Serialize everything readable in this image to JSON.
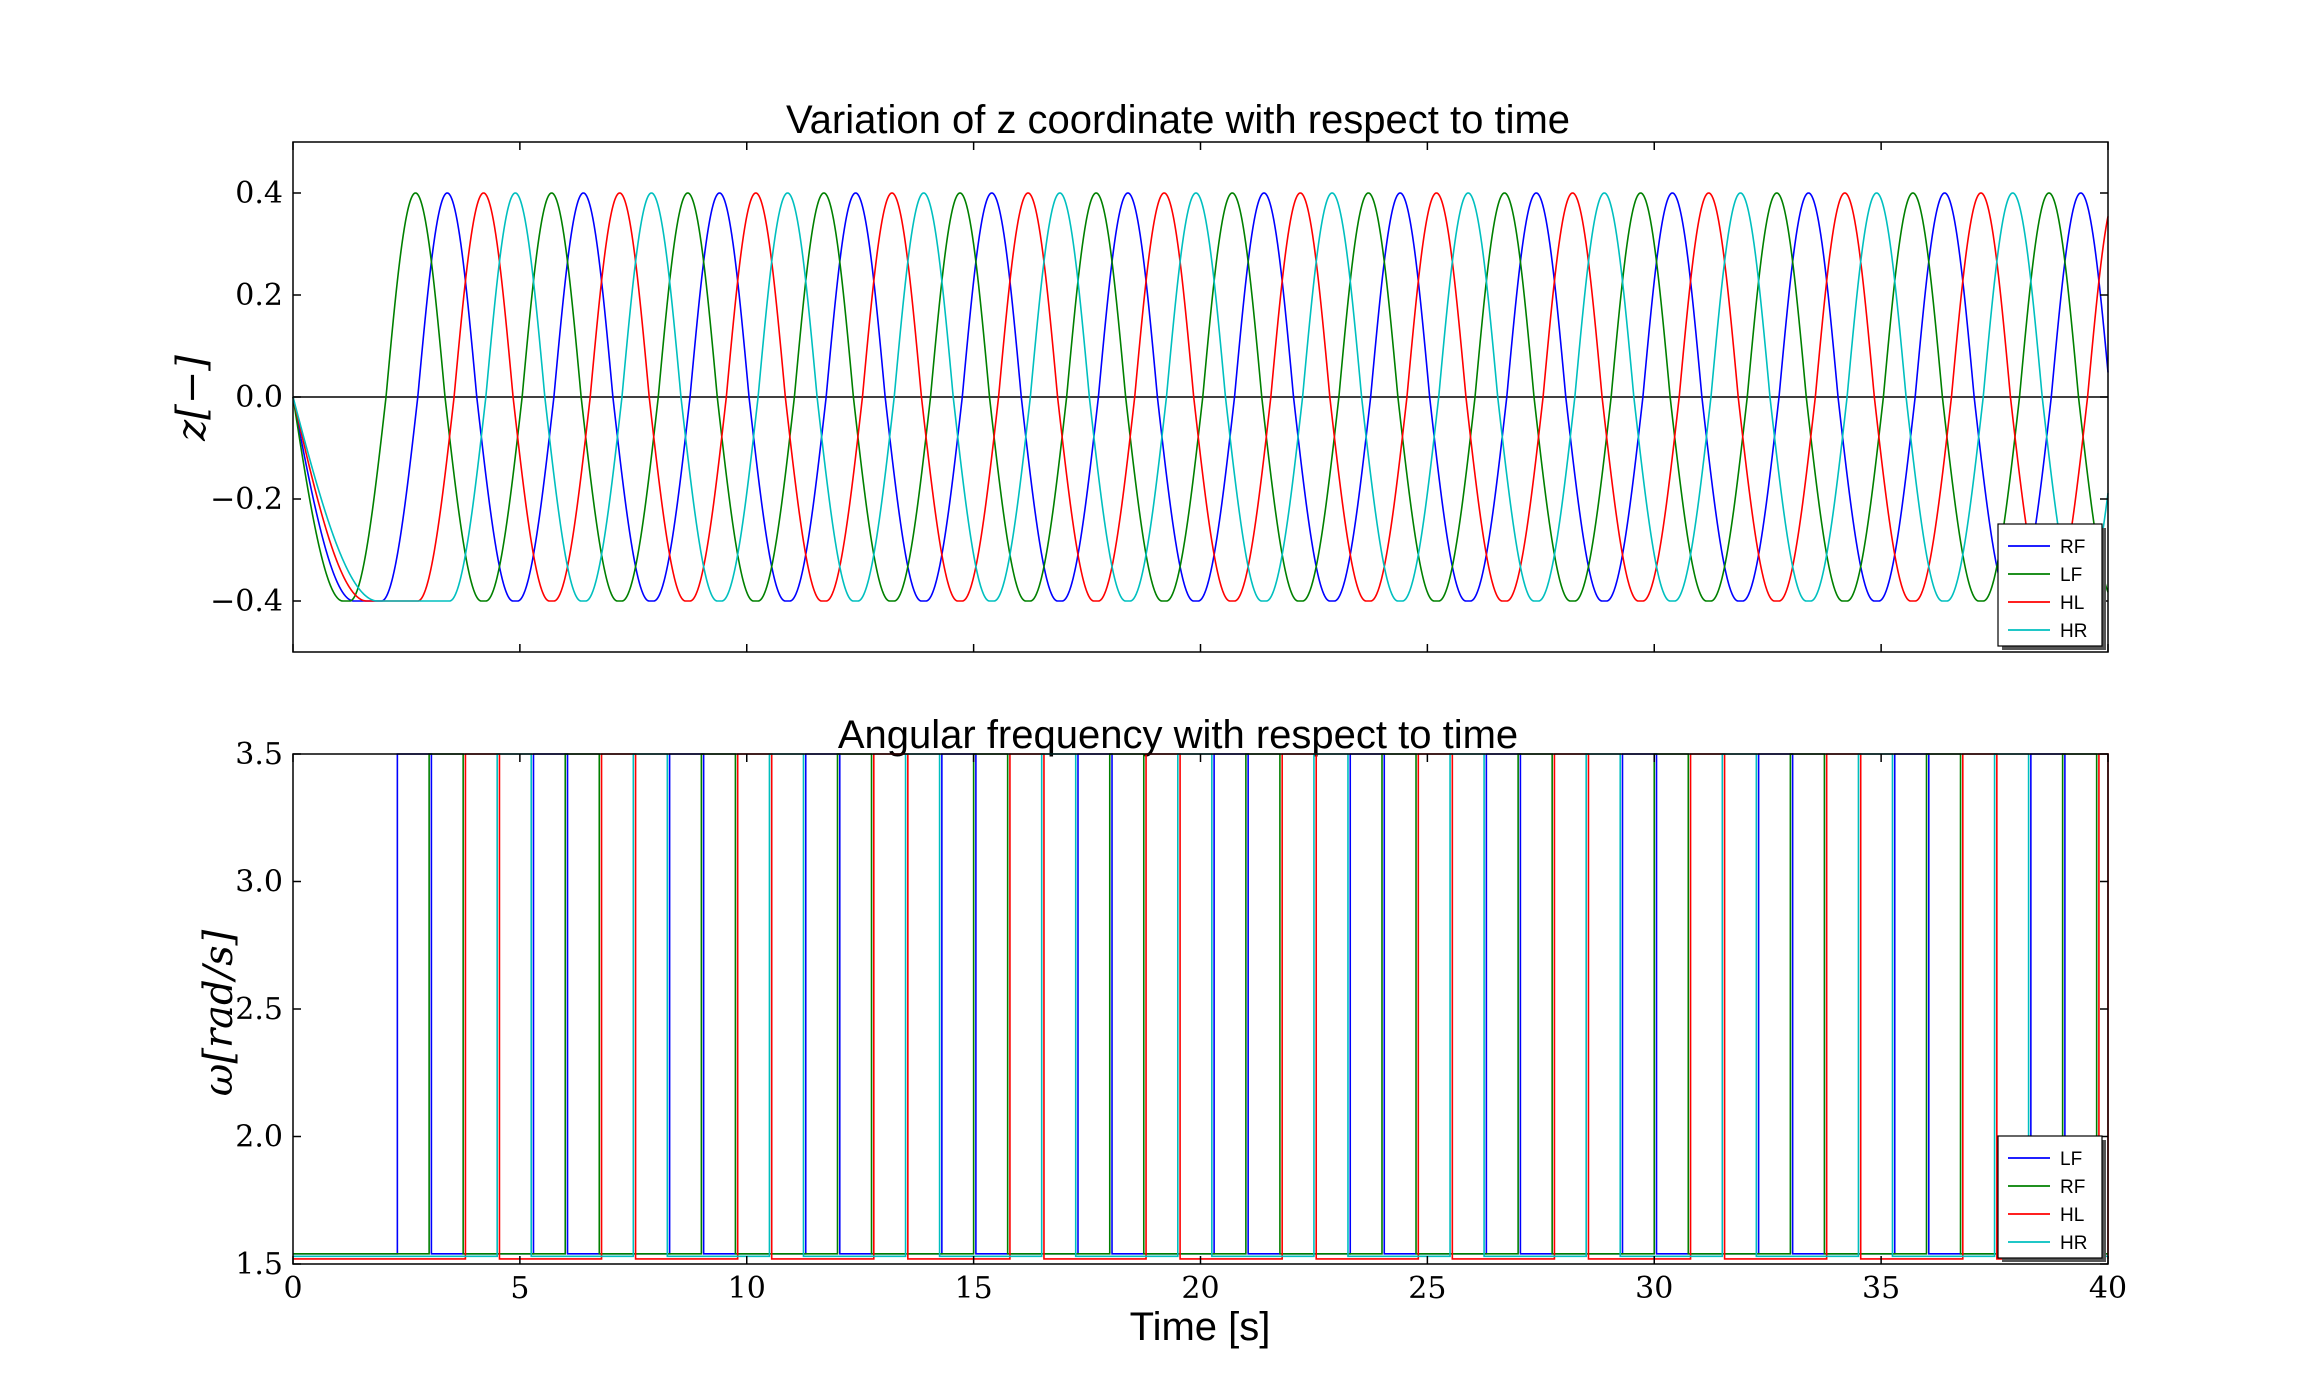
{
  "chart_data": [
    {
      "type": "line",
      "title": "Variation of z coordinate with respect to time",
      "xlabel": "",
      "ylabel": "z[−]",
      "xlim": [
        0,
        40
      ],
      "ylim": [
        -0.5,
        0.5
      ],
      "yticks": [
        -0.4,
        -0.2,
        0.0,
        0.2,
        0.4
      ],
      "ytick_labels": [
        "−0.4",
        "−0.2",
        "0.0",
        "0.2",
        "0.4"
      ],
      "xticks": [
        0,
        5,
        10,
        15,
        20,
        25,
        30,
        35,
        40
      ],
      "xtick_labels_shown": false,
      "grid": false,
      "reference_line": 0.0,
      "legend_position": "lower-right",
      "series": [
        {
          "name": "RF",
          "color": "#0000ff",
          "start_y": 0.0,
          "min_y": -0.4,
          "max_y": 0.4,
          "first_peak_t": 3.4,
          "peak_period_s": 3.0
        },
        {
          "name": "LF",
          "color": "#008000",
          "start_y": 0.0,
          "min_y": -0.4,
          "max_y": 0.4,
          "first_peak_t": 2.7,
          "peak_period_s": 3.0
        },
        {
          "name": "HL",
          "color": "#ff0000",
          "start_y": 0.0,
          "min_y": -0.4,
          "max_y": 0.4,
          "first_peak_t": 4.2,
          "peak_period_s": 3.0
        },
        {
          "name": "HR",
          "color": "#00bfbf",
          "start_y": 0.0,
          "min_y": -0.4,
          "max_y": 0.4,
          "first_peak_t": 4.9,
          "peak_period_s": 3.0
        }
      ]
    },
    {
      "type": "line",
      "title": "Angular frequency with respect to time",
      "xlabel": "Time [s]",
      "ylabel": "ω[rad/s]",
      "xlim": [
        0,
        40
      ],
      "ylim": [
        1.5,
        3.5
      ],
      "yticks": [
        1.5,
        2.0,
        2.5,
        3.0,
        3.5
      ],
      "ytick_labels": [
        "1.5",
        "2.0",
        "2.5",
        "3.0",
        "3.5"
      ],
      "xticks": [
        0,
        5,
        10,
        15,
        20,
        25,
        30,
        35,
        40
      ],
      "xtick_labels": [
        "0",
        "5",
        "10",
        "15",
        "20",
        "25",
        "30",
        "35",
        "40"
      ],
      "grid": false,
      "legend_position": "lower-right",
      "series": [
        {
          "name": "LF",
          "color": "#0000ff",
          "low_value": 1.54,
          "high_value": 3.5,
          "rise_times": [
            2.3,
            5.3,
            8.3,
            11.3,
            14.3,
            17.3,
            20.3,
            23.3,
            26.3,
            29.3,
            32.3,
            35.3,
            38.3
          ]
        },
        {
          "name": "RF",
          "color": "#008000",
          "low_value": 1.54,
          "high_value": 3.5,
          "rise_times": [
            3.0,
            6.0,
            9.0,
            12.0,
            15.0,
            18.0,
            21.0,
            24.0,
            27.0,
            30.0,
            33.0,
            36.0,
            39.0
          ]
        },
        {
          "name": "HL",
          "color": "#ff0000",
          "low_value": 1.52,
          "high_value": 3.5,
          "rise_times": [
            3.8,
            6.8,
            9.8,
            12.8,
            15.8,
            18.8,
            21.8,
            24.8,
            27.8,
            30.8,
            33.8,
            36.8,
            39.8
          ]
        },
        {
          "name": "HR",
          "color": "#00bfbf",
          "low_value": 1.53,
          "high_value": 3.5,
          "rise_times": [
            4.5,
            7.5,
            10.5,
            13.5,
            16.5,
            19.5,
            22.5,
            25.5,
            28.5,
            31.5,
            34.5,
            37.5
          ]
        }
      ]
    }
  ]
}
